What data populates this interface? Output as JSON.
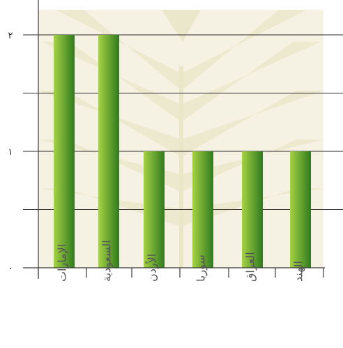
{
  "chart_data": {
    "type": "bar",
    "categories": [
      "الإمارات",
      "السعودية",
      "الأردن",
      "سوريا",
      "العراق",
      "الهند"
    ],
    "values": [
      2,
      2,
      1,
      1,
      1,
      1
    ],
    "y_ticks": [
      "٠",
      "١",
      "٢"
    ],
    "ylim": [
      0,
      2.4
    ],
    "grid": true,
    "legend": "none",
    "title": "",
    "xlabel": "",
    "ylabel": ""
  },
  "colors": {
    "bar_light": "#a6d243",
    "bar_dark": "#2f7a1e",
    "plot_bg": "#f6f2e3",
    "leaf": "#eae6c8",
    "grid": "#2b2b2b",
    "axis": "#3a3a3a"
  }
}
